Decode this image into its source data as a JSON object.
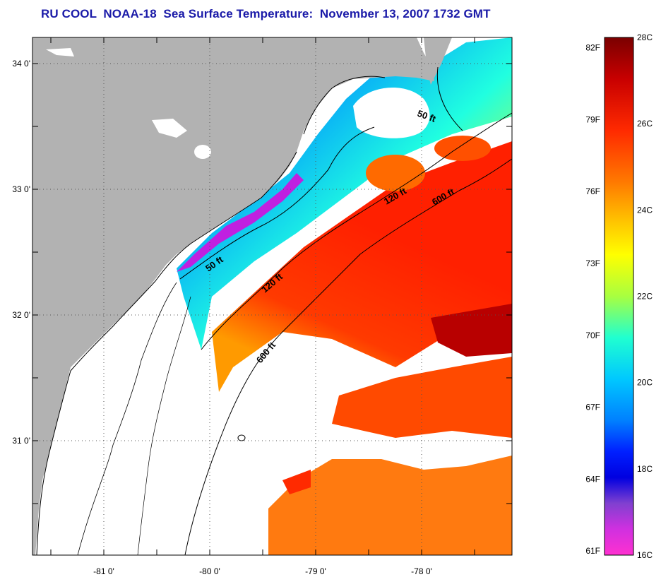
{
  "title": "RU COOL  NOAA-18  Sea Surface Temperature:  November 13, 2007 1732 GMT",
  "map": {
    "lat_ticks": [
      {
        "label": "34 0'",
        "value": 34
      },
      {
        "label": "33 0'",
        "value": 33
      },
      {
        "label": "32 0'",
        "value": 32
      },
      {
        "label": "31 0'",
        "value": 31
      }
    ],
    "lon_ticks": [
      {
        "label": "-81 0'",
        "value": -81
      },
      {
        "label": "-80 0'",
        "value": -80
      },
      {
        "label": "-79 0'",
        "value": -79
      },
      {
        "label": "-78 0'",
        "value": -78
      }
    ],
    "contour_labels": [
      {
        "text": "50 ft",
        "depth_ft": 50
      },
      {
        "text": "50 ft",
        "depth_ft": 50
      },
      {
        "text": "120 ft",
        "depth_ft": 120
      },
      {
        "text": "120 ft",
        "depth_ft": 120
      },
      {
        "text": "600 ft",
        "depth_ft": 600
      },
      {
        "text": "600 ft",
        "depth_ft": 600
      }
    ],
    "colors": {
      "land": "#b2b2b2",
      "cloud": "#ffffff",
      "gridline": "#555555"
    }
  },
  "colorbar": {
    "fahrenheit_labels": [
      "82F",
      "79F",
      "76F",
      "73F",
      "70F",
      "67F",
      "64F",
      "61F"
    ],
    "celsius_labels": [
      "28C",
      "26C",
      "24C",
      "22C",
      "20C",
      "18C",
      "16C"
    ],
    "range_c": [
      16,
      28
    ],
    "gradient_stops": [
      {
        "offset": 0.0,
        "color": "#7a0000"
      },
      {
        "offset": 0.08,
        "color": "#c80000"
      },
      {
        "offset": 0.18,
        "color": "#ff2a00"
      },
      {
        "offset": 0.28,
        "color": "#ff7a00"
      },
      {
        "offset": 0.36,
        "color": "#ffc800"
      },
      {
        "offset": 0.42,
        "color": "#ffff00"
      },
      {
        "offset": 0.5,
        "color": "#a8ff40"
      },
      {
        "offset": 0.58,
        "color": "#20ffd0"
      },
      {
        "offset": 0.66,
        "color": "#00c8ff"
      },
      {
        "offset": 0.74,
        "color": "#0080ff"
      },
      {
        "offset": 0.8,
        "color": "#0020ff"
      },
      {
        "offset": 0.85,
        "color": "#0000e0"
      },
      {
        "offset": 0.9,
        "color": "#8040d0"
      },
      {
        "offset": 0.95,
        "color": "#d030e0"
      },
      {
        "offset": 1.0,
        "color": "#ff30d0"
      }
    ]
  }
}
